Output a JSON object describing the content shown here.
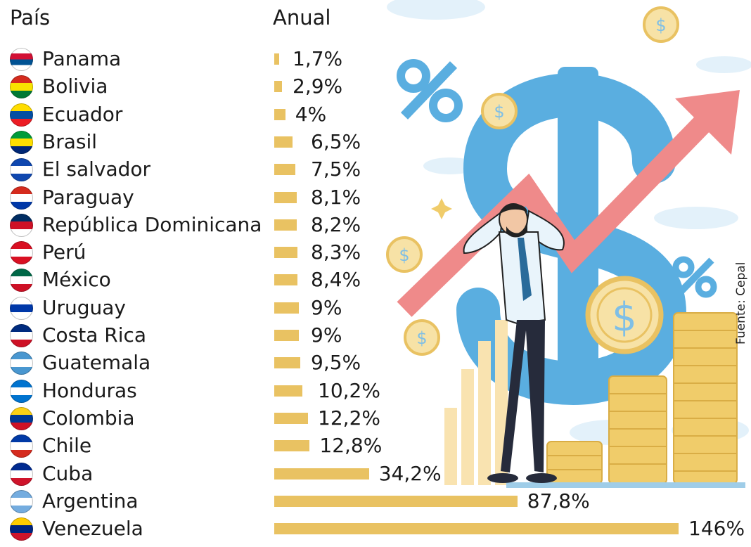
{
  "header": {
    "country_label": "País",
    "annual_label": "Anual"
  },
  "source": "Fuente: Cepal",
  "chart_data": {
    "type": "bar",
    "orientation": "horizontal",
    "categories": [
      "Panama",
      "Bolivia",
      "Ecuador",
      "Brasil",
      "El salvador",
      "Paraguay",
      "República Dominicana",
      "Perú",
      "México",
      "Uruguay",
      "Costa Rica",
      "Guatemala",
      "Honduras",
      "Colombia",
      "Chile",
      "Cuba",
      "Argentina",
      "Venezuela"
    ],
    "values": [
      1.7,
      2.9,
      4,
      6.5,
      7.5,
      8.1,
      8.2,
      8.3,
      8.4,
      9,
      9,
      9.5,
      10.2,
      12.2,
      12.8,
      34.2,
      87.8,
      146
    ],
    "labels": [
      "1,7%",
      "2,9%",
      "4%",
      "6,5%",
      "7,5%",
      "8,1%",
      "8,2%",
      "8,3%",
      "8,4%",
      "9%",
      "9%",
      "9,5%",
      "10,2%",
      "12,2%",
      "12,8%",
      "34,2%",
      "87,8%",
      "146%"
    ],
    "bar_color": "#e9c262",
    "grid": false,
    "legend": "none"
  },
  "flags": [
    {
      "icon": "panama-flag-icon",
      "colors": [
        "#ffffff",
        "#d21034",
        "#005293",
        "#ffffff"
      ]
    },
    {
      "icon": "bolivia-flag-icon",
      "colors": [
        "#d52b1e",
        "#f9e300",
        "#007934"
      ]
    },
    {
      "icon": "ecuador-flag-icon",
      "colors": [
        "#ffdd00",
        "#034ea2",
        "#ed1c24"
      ]
    },
    {
      "icon": "brazil-flag-icon",
      "colors": [
        "#009b3a",
        "#fedf00",
        "#002776"
      ]
    },
    {
      "icon": "el-salvador-flag-icon",
      "colors": [
        "#0f47af",
        "#ffffff",
        "#0f47af"
      ]
    },
    {
      "icon": "paraguay-flag-icon",
      "colors": [
        "#d52b1e",
        "#ffffff",
        "#0038a8"
      ]
    },
    {
      "icon": "dominican-republic-flag-icon",
      "colors": [
        "#002d62",
        "#ce1126",
        "#ffffff"
      ]
    },
    {
      "icon": "peru-flag-icon",
      "colors": [
        "#d91023",
        "#ffffff",
        "#d91023"
      ]
    },
    {
      "icon": "mexico-flag-icon",
      "colors": [
        "#006847",
        "#ffffff",
        "#ce1126"
      ]
    },
    {
      "icon": "uruguay-flag-icon",
      "colors": [
        "#ffffff",
        "#0038a8",
        "#ffffff"
      ]
    },
    {
      "icon": "costa-rica-flag-icon",
      "colors": [
        "#002b7f",
        "#ffffff",
        "#ce1126"
      ]
    },
    {
      "icon": "guatemala-flag-icon",
      "colors": [
        "#4997d0",
        "#ffffff",
        "#4997d0"
      ]
    },
    {
      "icon": "honduras-flag-icon",
      "colors": [
        "#0073cf",
        "#ffffff",
        "#0073cf"
      ]
    },
    {
      "icon": "colombia-flag-icon",
      "colors": [
        "#fcd116",
        "#003893",
        "#ce1126"
      ]
    },
    {
      "icon": "chile-flag-icon",
      "colors": [
        "#0039a6",
        "#ffffff",
        "#d52b1e"
      ]
    },
    {
      "icon": "cuba-flag-icon",
      "colors": [
        "#002a8f",
        "#ffffff",
        "#cf142b"
      ]
    },
    {
      "icon": "argentina-flag-icon",
      "colors": [
        "#74acdf",
        "#ffffff",
        "#74acdf"
      ]
    },
    {
      "icon": "venezuela-flag-icon",
      "colors": [
        "#ffcc00",
        "#00247d",
        "#cf142b"
      ]
    }
  ],
  "illustration": {
    "icons": [
      "percent-icon",
      "dollar-sign-icon",
      "rising-arrow-icon",
      "coin-stack-icon",
      "stressed-man-icon",
      "cloud-icon"
    ],
    "colors": {
      "blue": "#5aaee0",
      "red_arrow": "#ef8a8a",
      "gold": "#f0cc6a",
      "light_bar": "#f9e3b0",
      "light_blue": "#d6ecf7"
    }
  }
}
